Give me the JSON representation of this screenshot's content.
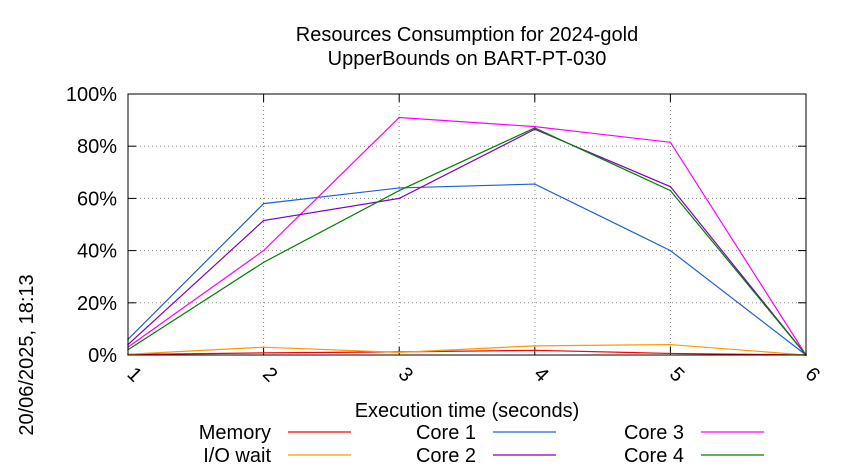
{
  "chart_data": {
    "type": "line",
    "title_line1": "Resources Consumption for 2024-gold",
    "title_line2": "UpperBounds on BART-PT-030",
    "xlabel": "Execution time (seconds)",
    "ylabel": "",
    "timestamp": "20/06/2025, 18:13",
    "x": [
      1,
      2,
      3,
      4,
      5,
      6
    ],
    "xlim": [
      1,
      6
    ],
    "ylim": [
      0,
      100
    ],
    "x_ticks": [
      "1",
      "2",
      "3",
      "4",
      "5",
      "6"
    ],
    "y_ticks": [
      {
        "value": 0,
        "label": "0%"
      },
      {
        "value": 20,
        "label": "20%"
      },
      {
        "value": 40,
        "label": "40%"
      },
      {
        "value": 60,
        "label": "60%"
      },
      {
        "value": 80,
        "label": "80%"
      },
      {
        "value": 100,
        "label": "100%"
      }
    ],
    "grid": true,
    "legend_position": "bottom",
    "series": [
      {
        "name": "Memory",
        "color": "#ff0000",
        "values": [
          0.2,
          0.8,
          1.2,
          1.8,
          0.6,
          0
        ]
      },
      {
        "name": "Core 1",
        "color": "#1f5fd9",
        "values": [
          6,
          58,
          64,
          65.5,
          40,
          0
        ]
      },
      {
        "name": "Core 3",
        "color": "#ff00ff",
        "values": [
          3,
          40,
          91,
          87.5,
          81.5,
          0
        ]
      },
      {
        "name": "I/O wait",
        "color": "#ff9900",
        "values": [
          0.3,
          3,
          1,
          3.5,
          4,
          0
        ]
      },
      {
        "name": "Core 2",
        "color": "#8000c0",
        "values": [
          4,
          51.5,
          60,
          86.5,
          64.5,
          0
        ]
      },
      {
        "name": "Core 4",
        "color": "#008000",
        "values": [
          2,
          35.5,
          63,
          87,
          63,
          0
        ]
      }
    ]
  }
}
